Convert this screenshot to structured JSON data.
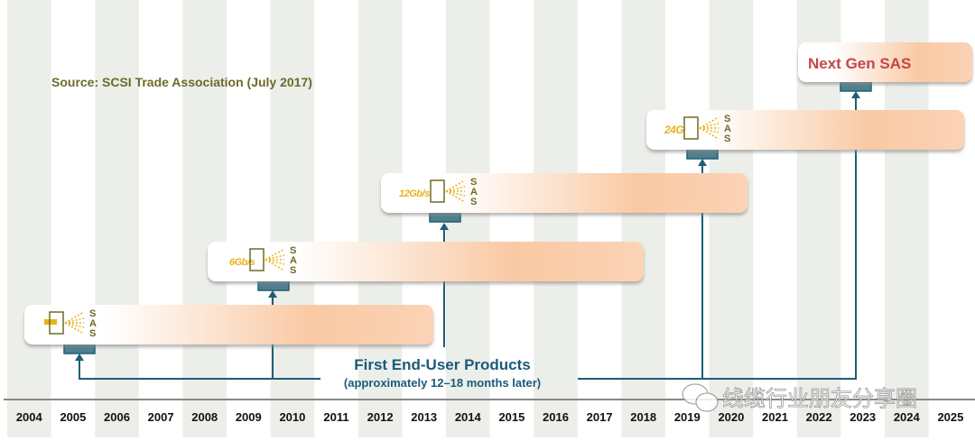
{
  "source": "Source: SCSI Trade Association (July 2017)",
  "years": [
    "2004",
    "2005",
    "2006",
    "2007",
    "2008",
    "2009",
    "2010",
    "2011",
    "2012",
    "2013",
    "2014",
    "2015",
    "2016",
    "2017",
    "2018",
    "2019",
    "2020",
    "2021",
    "2022",
    "2023",
    "2024",
    "2025"
  ],
  "generations": [
    {
      "speed_label": "",
      "logo_letters": [
        "S",
        "A",
        "S"
      ],
      "first_year": "2005"
    },
    {
      "speed_label": "6Gb/s",
      "logo_letters": [
        "S",
        "A",
        "S"
      ],
      "first_year": "2009"
    },
    {
      "speed_label": "12Gb/s",
      "logo_letters": [
        "S",
        "A",
        "S"
      ],
      "first_year": "2013"
    },
    {
      "speed_label": "24G",
      "logo_letters": [
        "S",
        "A",
        "S"
      ],
      "first_year": "2019"
    },
    {
      "title": "Next Gen SAS",
      "first_year": "2023"
    }
  ],
  "callout": {
    "title": "First End-User Products",
    "subtitle": "(approximately 12–18 months later)"
  },
  "watermark": "线缆行业朋友分享圈",
  "colors": {
    "stripe": "#eceee9",
    "teal": "#1e5e74",
    "olive": "#6b6b28",
    "gold": "#e8b21e",
    "red": "#c2464b",
    "peach": "#f9c9a4"
  }
}
